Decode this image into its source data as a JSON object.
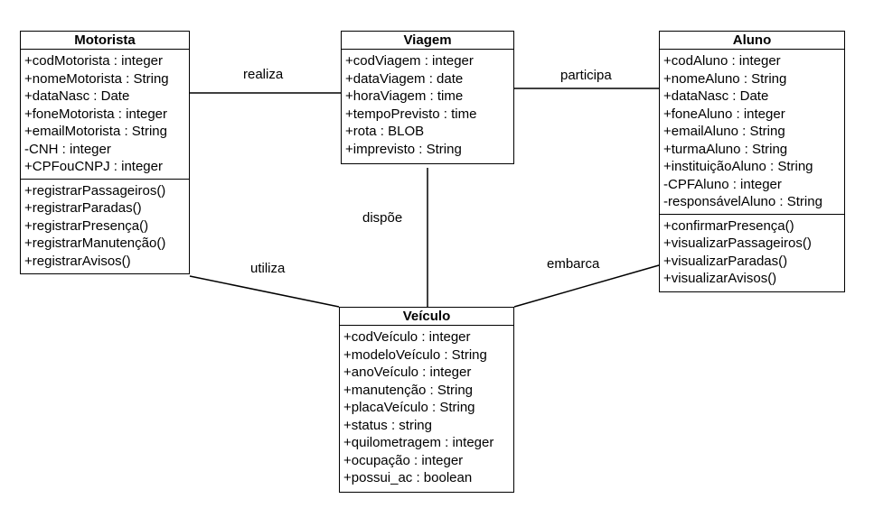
{
  "classes": {
    "motorista": {
      "name": "Motorista",
      "attributes": [
        "+codMotorista : integer",
        "+nomeMotorista : String",
        "+dataNasc : Date",
        "+foneMotorista : integer",
        "+emailMotorista : String",
        "-CNH : integer",
        "+CPFouCNPJ : integer"
      ],
      "operations": [
        "+registrarPassageiros()",
        "+registrarParadas()",
        "+registrarPresença()",
        "+registrarManutenção()",
        "+registrarAvisos()"
      ]
    },
    "viagem": {
      "name": "Viagem",
      "attributes": [
        "+codViagem : integer",
        "+dataViagem : date",
        "+horaViagem : time",
        "+tempoPrevisto : time",
        "+rota : BLOB",
        "+imprevisto : String"
      ],
      "operations": []
    },
    "aluno": {
      "name": "Aluno",
      "attributes": [
        "+codAluno : integer",
        "+nomeAluno : String",
        "+dataNasc : Date",
        "+foneAluno : integer",
        "+emailAluno : String",
        "+turmaAluno : String",
        "+instituiçãoAluno : String",
        "-CPFAluno : integer",
        "-responsávelAluno : String"
      ],
      "operations": [
        "+confirmarPresença()",
        "+visualizarPassageiros()",
        "+visualizarParadas()",
        "+visualizarAvisos()"
      ]
    },
    "veiculo": {
      "name": "Veículo",
      "attributes": [
        "+codVeículo : integer",
        "+modeloVeículo : String",
        "+anoVeículo : integer",
        "+manutenção : String",
        "+placaVeículo : String",
        "+status : string",
        "+quilometragem : integer",
        "+ocupação : integer",
        "+possui_ac : boolean"
      ],
      "operations": []
    }
  },
  "associations": {
    "realiza": "realiza",
    "participa": "participa",
    "dispoe": "dispõe",
    "utiliza": "utiliza",
    "embarca": "embarca"
  }
}
